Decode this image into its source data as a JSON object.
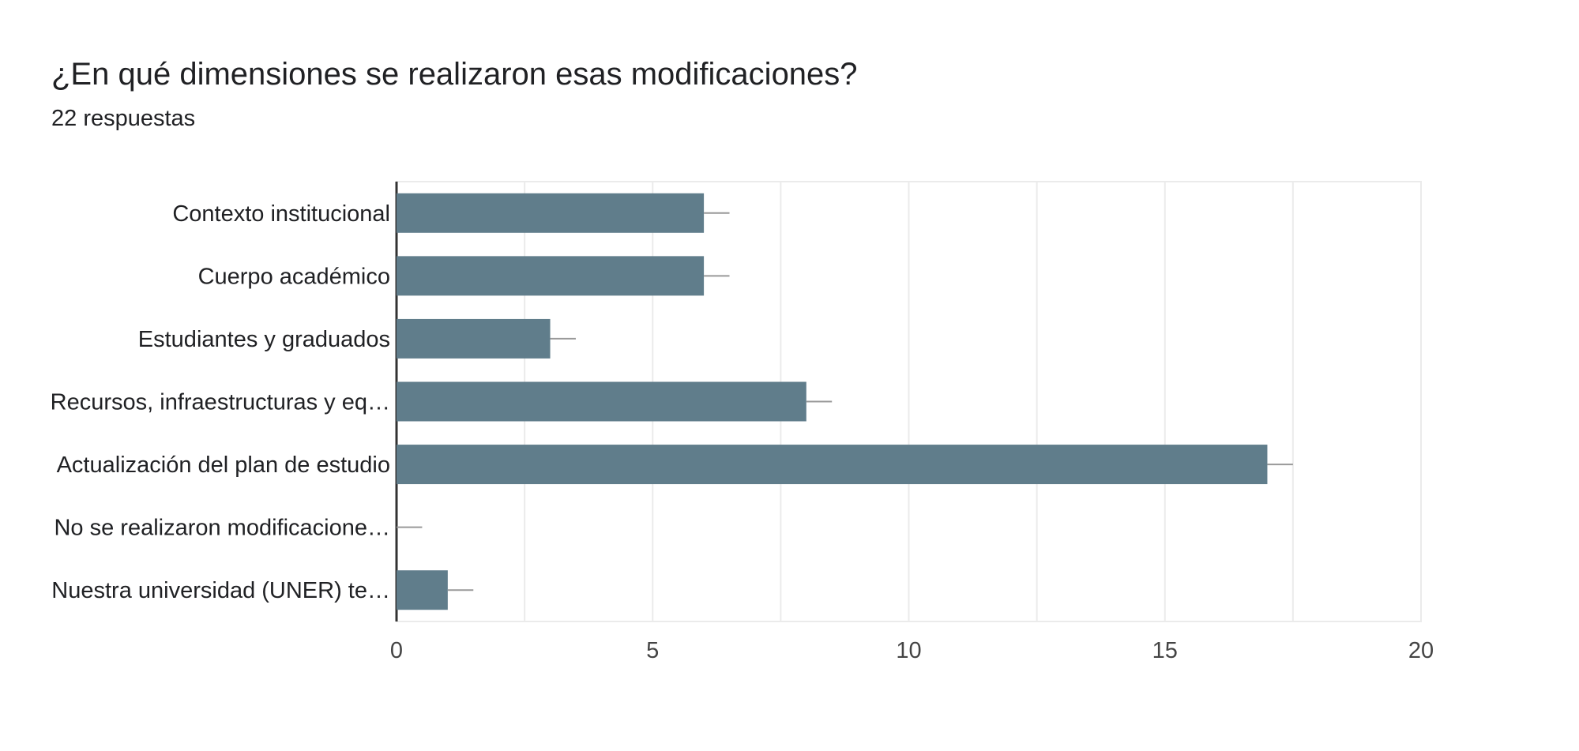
{
  "header": {
    "title": "¿En qué dimensiones se realizaron esas modificaciones?",
    "responses": "22 respuestas"
  },
  "colors": {
    "bar": "#607d8b",
    "grid": "#ebebeb",
    "axis": "#333333",
    "errorbar": "#999999"
  },
  "chart_data": {
    "type": "bar",
    "orientation": "horizontal",
    "title": "¿En qué dimensiones se realizaron esas modificaciones?",
    "subtitle": "22 respuestas",
    "categories": [
      "Contexto institucional",
      "Cuerpo académico",
      "Estudiantes y graduados",
      "Recursos, infraestructuras y eq…",
      "Actualización del plan de estudio",
      "No se realizaron modificacione…",
      "Nuestra universidad (UNER) te…"
    ],
    "values": [
      6,
      6,
      3,
      8,
      17,
      0,
      1
    ],
    "xlim": [
      0,
      20
    ],
    "xticks": [
      "0",
      "5",
      "10",
      "15",
      "20"
    ],
    "grid": true,
    "legend": "none"
  }
}
